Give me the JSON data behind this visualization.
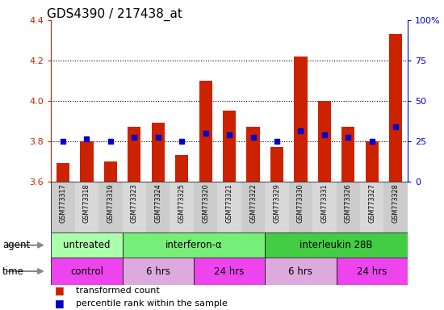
{
  "title": "GDS4390 / 217438_at",
  "samples": [
    "GSM773317",
    "GSM773318",
    "GSM773319",
    "GSM773323",
    "GSM773324",
    "GSM773325",
    "GSM773320",
    "GSM773321",
    "GSM773322",
    "GSM773329",
    "GSM773330",
    "GSM773331",
    "GSM773326",
    "GSM773327",
    "GSM773328"
  ],
  "bar_values": [
    3.69,
    3.8,
    3.7,
    3.87,
    3.89,
    3.73,
    4.1,
    3.95,
    3.87,
    3.77,
    4.22,
    4.0,
    3.87,
    3.8,
    4.33
  ],
  "percentile_values": [
    3.8,
    3.81,
    3.8,
    3.82,
    3.82,
    3.8,
    3.84,
    3.83,
    3.82,
    3.8,
    3.85,
    3.83,
    3.82,
    3.8,
    3.87
  ],
  "ylim_left": [
    3.6,
    4.4
  ],
  "ylim_right": [
    0,
    100
  ],
  "yticks_left": [
    3.6,
    3.8,
    4.0,
    4.2,
    4.4
  ],
  "yticks_right": [
    0,
    25,
    50,
    75,
    100
  ],
  "bar_color": "#cc2200",
  "dot_color": "#0000cc",
  "grid_lines": [
    3.8,
    4.0,
    4.2
  ],
  "agent_groups": [
    {
      "label": "untreated",
      "start": 0,
      "end": 3,
      "color": "#aaffaa"
    },
    {
      "label": "interferon-α",
      "start": 3,
      "end": 9,
      "color": "#77ee77"
    },
    {
      "label": "interleukin 28B",
      "start": 9,
      "end": 15,
      "color": "#44cc44"
    }
  ],
  "time_groups": [
    {
      "label": "control",
      "start": 0,
      "end": 3,
      "color": "#ee44ee"
    },
    {
      "label": "6 hrs",
      "start": 3,
      "end": 6,
      "color": "#ddaadd"
    },
    {
      "label": "24 hrs",
      "start": 6,
      "end": 9,
      "color": "#ee44ee"
    },
    {
      "label": "6 hrs",
      "start": 9,
      "end": 12,
      "color": "#ddaadd"
    },
    {
      "label": "24 hrs",
      "start": 12,
      "end": 15,
      "color": "#ee44ee"
    }
  ],
  "legend": [
    {
      "label": "transformed count",
      "color": "#cc2200"
    },
    {
      "label": "percentile rank within the sample",
      "color": "#0000cc"
    }
  ],
  "title_fontsize": 11,
  "bar_color_left_axis": "#cc2200",
  "bar_color_right_axis": "#0000cc"
}
